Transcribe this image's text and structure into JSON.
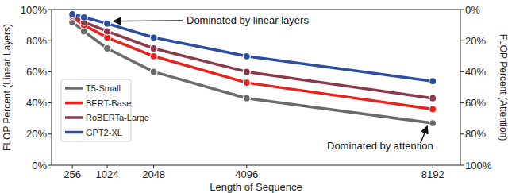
{
  "chart_data": {
    "type": "line",
    "x_label": "Length of Sequence",
    "y_label": "FLOP Percent (Linear Layers)",
    "y2_label": "FLOP Percent (Attention)",
    "x": [
      256,
      512,
      1024,
      2048,
      4096,
      8192
    ],
    "xlim": [
      -200,
      8800
    ],
    "xticks": [
      256,
      1024,
      2048,
      4096,
      8192
    ],
    "ylim": [
      0,
      100
    ],
    "yticks": [
      {
        "value": 0,
        "label": "0%"
      },
      {
        "value": 20,
        "label": "20%"
      },
      {
        "value": 40,
        "label": "40%"
      },
      {
        "value": 60,
        "label": "60%"
      },
      {
        "value": 80,
        "label": "80%"
      },
      {
        "value": 100,
        "label": "100%"
      }
    ],
    "y2lim": [
      100,
      0
    ],
    "y2ticks": [
      {
        "value": 0,
        "label": "0%"
      },
      {
        "value": 20,
        "label": "20%"
      },
      {
        "value": 40,
        "label": "40%"
      },
      {
        "value": 60,
        "label": "60%"
      },
      {
        "value": 80,
        "label": "80%"
      },
      {
        "value": 100,
        "label": "100%"
      }
    ],
    "series": [
      {
        "name": "T5-Small",
        "color": "#6b6b6b",
        "values": [
          92,
          86,
          75,
          60,
          43,
          27
        ]
      },
      {
        "name": "BERT-Base",
        "color": "#e8231d",
        "values": [
          95,
          90,
          82,
          70,
          53,
          36
        ]
      },
      {
        "name": "RoBERTa-Large",
        "color": "#8b3a4c",
        "values": [
          96,
          92,
          86,
          75,
          60,
          43
        ]
      },
      {
        "name": "GPT2-XL",
        "color": "#2b4f9e",
        "values": [
          97,
          95,
          91,
          82,
          70,
          54
        ]
      }
    ],
    "annotations": [
      "Dominated by linear layers",
      "Dominated by attention"
    ],
    "marker": "circle",
    "grid": false,
    "legend": "lower left"
  }
}
